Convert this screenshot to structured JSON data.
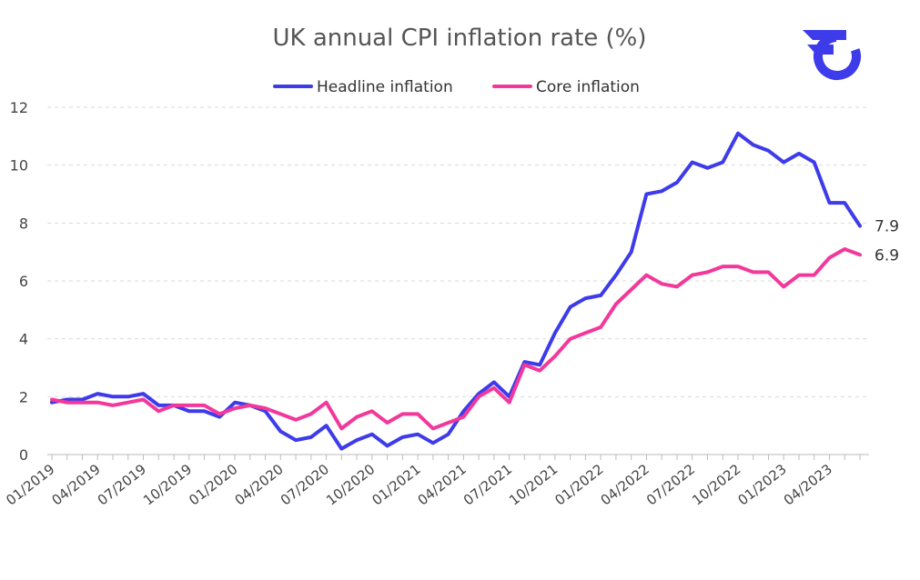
{
  "colors": {
    "headline": "#3D3BEA",
    "core": "#F2399B",
    "logo": "#3D3BEA"
  },
  "logo": {
    "icon": "brand-logo-icon"
  },
  "chart_data": {
    "type": "line",
    "title": "UK annual CPI inflation rate (%)",
    "legend_position": "top",
    "grid": true,
    "ylim": [
      0,
      12
    ],
    "yticks": [
      0,
      2,
      4,
      6,
      8,
      10,
      12
    ],
    "x": [
      "01/2019",
      "02/2019",
      "03/2019",
      "04/2019",
      "05/2019",
      "06/2019",
      "07/2019",
      "08/2019",
      "09/2019",
      "10/2019",
      "11/2019",
      "12/2019",
      "01/2020",
      "02/2020",
      "03/2020",
      "04/2020",
      "05/2020",
      "06/2020",
      "07/2020",
      "08/2020",
      "09/2020",
      "10/2020",
      "11/2020",
      "12/2020",
      "01/2021",
      "02/2021",
      "03/2021",
      "04/2021",
      "05/2021",
      "06/2021",
      "07/2021",
      "08/2021",
      "09/2021",
      "10/2021",
      "11/2021",
      "12/2021",
      "01/2022",
      "02/2022",
      "03/2022",
      "04/2022",
      "05/2022",
      "06/2022",
      "07/2022",
      "08/2022",
      "09/2022",
      "10/2022",
      "11/2022",
      "12/2022",
      "01/2023",
      "02/2023",
      "03/2023",
      "04/2023",
      "05/2023",
      "06/2023"
    ],
    "xticks": [
      "01/2019",
      "04/2019",
      "07/2019",
      "10/2019",
      "01/2020",
      "04/2020",
      "07/2020",
      "10/2020",
      "01/2021",
      "04/2021",
      "07/2021",
      "10/2021",
      "01/2022",
      "04/2022",
      "07/2022",
      "10/2022",
      "01/2023",
      "04/2023"
    ],
    "series": [
      {
        "name": "Headline inflation",
        "end_label": "7.9",
        "values": [
          1.8,
          1.9,
          1.9,
          2.1,
          2.0,
          2.0,
          2.1,
          1.7,
          1.7,
          1.5,
          1.5,
          1.3,
          1.8,
          1.7,
          1.5,
          0.8,
          0.5,
          0.6,
          1.0,
          0.2,
          0.5,
          0.7,
          0.3,
          0.6,
          0.7,
          0.4,
          0.7,
          1.5,
          2.1,
          2.5,
          2.0,
          3.2,
          3.1,
          4.2,
          5.1,
          5.4,
          5.5,
          6.2,
          7.0,
          9.0,
          9.1,
          9.4,
          10.1,
          9.9,
          10.1,
          11.1,
          10.7,
          10.5,
          10.1,
          10.4,
          10.1,
          8.7,
          8.7,
          7.9
        ]
      },
      {
        "name": "Core inflation",
        "end_label": "6.9",
        "values": [
          1.9,
          1.8,
          1.8,
          1.8,
          1.7,
          1.8,
          1.9,
          1.5,
          1.7,
          1.7,
          1.7,
          1.4,
          1.6,
          1.7,
          1.6,
          1.4,
          1.2,
          1.4,
          1.8,
          0.9,
          1.3,
          1.5,
          1.1,
          1.4,
          1.4,
          0.9,
          1.1,
          1.3,
          2.0,
          2.3,
          1.8,
          3.1,
          2.9,
          3.4,
          4.0,
          4.2,
          4.4,
          5.2,
          5.7,
          6.2,
          5.9,
          5.8,
          6.2,
          6.3,
          6.5,
          6.5,
          6.3,
          6.3,
          5.8,
          6.2,
          6.2,
          6.8,
          7.1,
          6.9
        ]
      }
    ]
  }
}
